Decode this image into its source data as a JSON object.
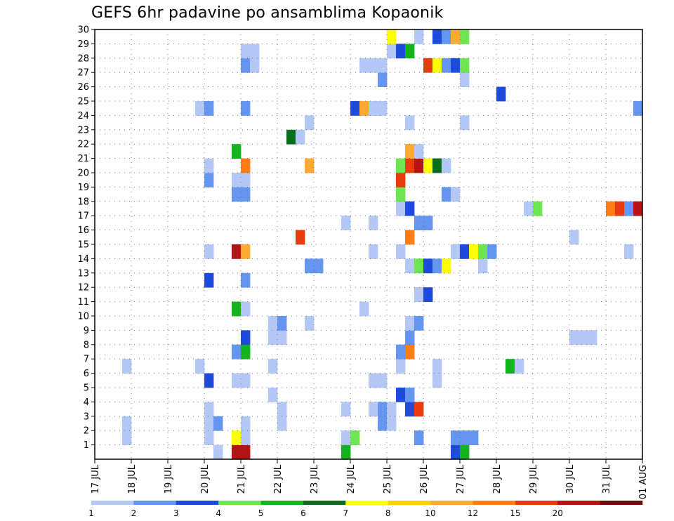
{
  "title": "GEFS 6hr padavine po ansamblima Kopaonik",
  "chart_data": {
    "type": "heatmap",
    "title": "GEFS 6hr padavine po ansamblima Kopaonik",
    "y_ticks": [
      1,
      2,
      3,
      4,
      5,
      6,
      7,
      8,
      9,
      10,
      11,
      12,
      13,
      14,
      15,
      16,
      17,
      18,
      19,
      20,
      21,
      22,
      23,
      24,
      25,
      26,
      27,
      28,
      29,
      30
    ],
    "x_ticks": [
      "17 JUL",
      "18 JUL",
      "19 JUL",
      "20 JUL",
      "21 JUL",
      "22 JUL",
      "23 JUL",
      "24 JUL",
      "25 JUL",
      "26 JUL",
      "27 JUL",
      "28 JUL",
      "29 JUL",
      "30 JUL",
      "31 JUL",
      "01 AUG"
    ],
    "x_range": [
      "17 JUL 00Z",
      "01 AUG 00Z"
    ],
    "y_range": [
      0,
      30
    ],
    "time_step_hours": 6,
    "grid": true,
    "colorbar": {
      "tick_labels": [
        "1",
        "2",
        "3",
        "4",
        "5",
        "6",
        "7",
        "8",
        "10",
        "12",
        "15",
        "20"
      ],
      "colors": [
        "#b4c8f5",
        "#6496f0",
        "#1e4bdc",
        "#6ee650",
        "#14b41e",
        "#0a6e1e",
        "#ffff00",
        "#ffd200",
        "#ffaa32",
        "#ff7d14",
        "#e63c0f",
        "#b41414",
        "#6e0a0a"
      ]
    },
    "cells": [
      {
        "m": 0,
        "t": "20 JUL 06Z",
        "v": 1
      },
      {
        "m": 0,
        "t": "20 JUL 18Z",
        "v": 20
      },
      {
        "m": 0,
        "t": "21 JUL 00Z",
        "v": 20
      },
      {
        "m": 0,
        "t": "23 JUL 18Z",
        "v": 5
      },
      {
        "m": 0,
        "t": "26 JUL 18Z",
        "v": 3
      },
      {
        "m": 0,
        "t": "27 JUL 00Z",
        "v": 5
      },
      {
        "m": 1,
        "t": "17 JUL 18Z",
        "v": 1
      },
      {
        "m": 1,
        "t": "20 JUL 00Z",
        "v": 1
      },
      {
        "m": 1,
        "t": "20 JUL 18Z",
        "v": 7
      },
      {
        "m": 1,
        "t": "21 JUL 00Z",
        "v": 1
      },
      {
        "m": 1,
        "t": "23 JUL 18Z",
        "v": 1
      },
      {
        "m": 1,
        "t": "24 JUL 00Z",
        "v": 4
      },
      {
        "m": 1,
        "t": "25 JUL 18Z",
        "v": 2
      },
      {
        "m": 1,
        "t": "26 JUL 18Z",
        "v": 2
      },
      {
        "m": 1,
        "t": "27 JUL 00Z",
        "v": 2
      },
      {
        "m": 1,
        "t": "27 JUL 06Z",
        "v": 2
      },
      {
        "m": 2,
        "t": "17 JUL 18Z",
        "v": 1
      },
      {
        "m": 2,
        "t": "20 JUL 00Z",
        "v": 1
      },
      {
        "m": 2,
        "t": "20 JUL 06Z",
        "v": 2
      },
      {
        "m": 2,
        "t": "21 JUL 00Z",
        "v": 1
      },
      {
        "m": 2,
        "t": "22 JUL 00Z",
        "v": 1
      },
      {
        "m": 2,
        "t": "24 JUL 18Z",
        "v": 2
      },
      {
        "m": 2,
        "t": "25 JUL 00Z",
        "v": 1
      },
      {
        "m": 3,
        "t": "20 JUL 00Z",
        "v": 1
      },
      {
        "m": 3,
        "t": "22 JUL 00Z",
        "v": 1
      },
      {
        "m": 3,
        "t": "23 JUL 18Z",
        "v": 1
      },
      {
        "m": 3,
        "t": "24 JUL 12Z",
        "v": 1
      },
      {
        "m": 3,
        "t": "24 JUL 18Z",
        "v": 2
      },
      {
        "m": 3,
        "t": "25 JUL 00Z",
        "v": 1
      },
      {
        "m": 3,
        "t": "25 JUL 12Z",
        "v": 3
      },
      {
        "m": 3,
        "t": "25 JUL 18Z",
        "v": 15
      },
      {
        "m": 4,
        "t": "21 JUL 18Z",
        "v": 1
      },
      {
        "m": 4,
        "t": "25 JUL 06Z",
        "v": 3
      },
      {
        "m": 4,
        "t": "25 JUL 12Z",
        "v": 2
      },
      {
        "m": 5,
        "t": "20 JUL 00Z",
        "v": 3
      },
      {
        "m": 5,
        "t": "20 JUL 18Z",
        "v": 1
      },
      {
        "m": 5,
        "t": "21 JUL 00Z",
        "v": 1
      },
      {
        "m": 5,
        "t": "24 JUL 12Z",
        "v": 1
      },
      {
        "m": 5,
        "t": "24 JUL 18Z",
        "v": 1
      },
      {
        "m": 5,
        "t": "26 JUL 06Z",
        "v": 1
      },
      {
        "m": 6,
        "t": "17 JUL 18Z",
        "v": 1
      },
      {
        "m": 6,
        "t": "19 JUL 18Z",
        "v": 1
      },
      {
        "m": 6,
        "t": "21 JUL 18Z",
        "v": 1
      },
      {
        "m": 6,
        "t": "25 JUL 06Z",
        "v": 1
      },
      {
        "m": 6,
        "t": "26 JUL 06Z",
        "v": 1
      },
      {
        "m": 6,
        "t": "28 JUL 06Z",
        "v": 5
      },
      {
        "m": 6,
        "t": "28 JUL 12Z",
        "v": 1
      },
      {
        "m": 7,
        "t": "20 JUL 18Z",
        "v": 2
      },
      {
        "m": 7,
        "t": "21 JUL 00Z",
        "v": 5
      },
      {
        "m": 7,
        "t": "25 JUL 06Z",
        "v": 2
      },
      {
        "m": 7,
        "t": "25 JUL 12Z",
        "v": 12
      },
      {
        "m": 8,
        "t": "21 JUL 00Z",
        "v": 3
      },
      {
        "m": 8,
        "t": "21 JUL 18Z",
        "v": 1
      },
      {
        "m": 8,
        "t": "22 JUL 00Z",
        "v": 1
      },
      {
        "m": 8,
        "t": "25 JUL 12Z",
        "v": 2
      },
      {
        "m": 8,
        "t": "30 JUL 00Z",
        "v": 1
      },
      {
        "m": 8,
        "t": "30 JUL 06Z",
        "v": 1
      },
      {
        "m": 8,
        "t": "30 JUL 12Z",
        "v": 1
      },
      {
        "m": 9,
        "t": "21 JUL 18Z",
        "v": 1
      },
      {
        "m": 9,
        "t": "22 JUL 00Z",
        "v": 2
      },
      {
        "m": 9,
        "t": "22 JUL 18Z",
        "v": 1
      },
      {
        "m": 9,
        "t": "25 JUL 12Z",
        "v": 1
      },
      {
        "m": 9,
        "t": "25 JUL 18Z",
        "v": 2
      },
      {
        "m": 10,
        "t": "20 JUL 18Z",
        "v": 5
      },
      {
        "m": 10,
        "t": "21 JUL 00Z",
        "v": 1
      },
      {
        "m": 10,
        "t": "24 JUL 06Z",
        "v": 1
      },
      {
        "m": 11,
        "t": "25 JUL 18Z",
        "v": 1
      },
      {
        "m": 11,
        "t": "26 JUL 00Z",
        "v": 3
      },
      {
        "m": 12,
        "t": "20 JUL 00Z",
        "v": 3
      },
      {
        "m": 12,
        "t": "21 JUL 00Z",
        "v": 2
      },
      {
        "m": 13,
        "t": "22 JUL 18Z",
        "v": 2
      },
      {
        "m": 13,
        "t": "23 JUL 00Z",
        "v": 2
      },
      {
        "m": 13,
        "t": "25 JUL 12Z",
        "v": 1
      },
      {
        "m": 13,
        "t": "25 JUL 18Z",
        "v": 4
      },
      {
        "m": 13,
        "t": "26 JUL 00Z",
        "v": 3
      },
      {
        "m": 13,
        "t": "26 JUL 06Z",
        "v": 2
      },
      {
        "m": 13,
        "t": "26 JUL 12Z",
        "v": 7
      },
      {
        "m": 13,
        "t": "27 JUL 12Z",
        "v": 1
      },
      {
        "m": 14,
        "t": "20 JUL 00Z",
        "v": 1
      },
      {
        "m": 14,
        "t": "20 JUL 18Z",
        "v": 20
      },
      {
        "m": 14,
        "t": "21 JUL 00Z",
        "v": 10
      },
      {
        "m": 14,
        "t": "24 JUL 12Z",
        "v": 1
      },
      {
        "m": 14,
        "t": "25 JUL 06Z",
        "v": 1
      },
      {
        "m": 14,
        "t": "26 JUL 18Z",
        "v": 1
      },
      {
        "m": 14,
        "t": "27 JUL 00Z",
        "v": 3
      },
      {
        "m": 14,
        "t": "27 JUL 06Z",
        "v": 7
      },
      {
        "m": 14,
        "t": "27 JUL 12Z",
        "v": 4
      },
      {
        "m": 14,
        "t": "27 JUL 18Z",
        "v": 2
      },
      {
        "m": 14,
        "t": "31 JUL 12Z",
        "v": 1
      },
      {
        "m": 15,
        "t": "22 JUL 12Z",
        "v": 15
      },
      {
        "m": 15,
        "t": "25 JUL 12Z",
        "v": 12
      },
      {
        "m": 15,
        "t": "30 JUL 00Z",
        "v": 1
      },
      {
        "m": 16,
        "t": "23 JUL 18Z",
        "v": 1
      },
      {
        "m": 16,
        "t": "24 JUL 12Z",
        "v": 1
      },
      {
        "m": 16,
        "t": "25 JUL 18Z",
        "v": 2
      },
      {
        "m": 16,
        "t": "26 JUL 00Z",
        "v": 2
      },
      {
        "m": 17,
        "t": "25 JUL 06Z",
        "v": 1
      },
      {
        "m": 17,
        "t": "25 JUL 12Z",
        "v": 3
      },
      {
        "m": 17,
        "t": "28 JUL 18Z",
        "v": 1
      },
      {
        "m": 17,
        "t": "29 JUL 00Z",
        "v": 4
      },
      {
        "m": 17,
        "t": "31 JUL 00Z",
        "v": 12
      },
      {
        "m": 17,
        "t": "31 JUL 06Z",
        "v": 15
      },
      {
        "m": 17,
        "t": "31 JUL 12Z",
        "v": 2
      },
      {
        "m": 17,
        "t": "31 JUL 18Z",
        "v": 20
      },
      {
        "m": 18,
        "t": "20 JUL 18Z",
        "v": 2
      },
      {
        "m": 18,
        "t": "21 JUL 00Z",
        "v": 2
      },
      {
        "m": 18,
        "t": "25 JUL 06Z",
        "v": 4
      },
      {
        "m": 18,
        "t": "26 JUL 12Z",
        "v": 2
      },
      {
        "m": 18,
        "t": "26 JUL 18Z",
        "v": 1
      },
      {
        "m": 19,
        "t": "20 JUL 00Z",
        "v": 2
      },
      {
        "m": 19,
        "t": "20 JUL 18Z",
        "v": 1
      },
      {
        "m": 19,
        "t": "21 JUL 00Z",
        "v": 1
      },
      {
        "m": 19,
        "t": "25 JUL 06Z",
        "v": 15
      },
      {
        "m": 20,
        "t": "20 JUL 00Z",
        "v": 1
      },
      {
        "m": 20,
        "t": "21 JUL 00Z",
        "v": 12
      },
      {
        "m": 20,
        "t": "22 JUL 18Z",
        "v": 10
      },
      {
        "m": 20,
        "t": "25 JUL 06Z",
        "v": 4
      },
      {
        "m": 20,
        "t": "25 JUL 12Z",
        "v": 15
      },
      {
        "m": 20,
        "t": "25 JUL 18Z",
        "v": 20
      },
      {
        "m": 20,
        "t": "26 JUL 00Z",
        "v": 7
      },
      {
        "m": 20,
        "t": "26 JUL 06Z",
        "v": 6
      },
      {
        "m": 20,
        "t": "26 JUL 12Z",
        "v": 1
      },
      {
        "m": 21,
        "t": "20 JUL 18Z",
        "v": 5
      },
      {
        "m": 21,
        "t": "25 JUL 12Z",
        "v": 10
      },
      {
        "m": 21,
        "t": "25 JUL 18Z",
        "v": 1
      },
      {
        "m": 22,
        "t": "22 JUL 06Z",
        "v": 6
      },
      {
        "m": 22,
        "t": "22 JUL 12Z",
        "v": 1
      },
      {
        "m": 23,
        "t": "22 JUL 18Z",
        "v": 1
      },
      {
        "m": 23,
        "t": "25 JUL 12Z",
        "v": 1
      },
      {
        "m": 23,
        "t": "27 JUL 00Z",
        "v": 1
      },
      {
        "m": 24,
        "t": "19 JUL 18Z",
        "v": 1
      },
      {
        "m": 24,
        "t": "20 JUL 00Z",
        "v": 2
      },
      {
        "m": 24,
        "t": "21 JUL 00Z",
        "v": 2
      },
      {
        "m": 24,
        "t": "24 JUL 00Z",
        "v": 3
      },
      {
        "m": 24,
        "t": "24 JUL 06Z",
        "v": 10
      },
      {
        "m": 24,
        "t": "24 JUL 12Z",
        "v": 1
      },
      {
        "m": 24,
        "t": "24 JUL 18Z",
        "v": 1
      },
      {
        "m": 24,
        "t": "31 JUL 18Z",
        "v": 2
      },
      {
        "m": 25,
        "t": "28 JUL 00Z",
        "v": 3
      },
      {
        "m": 26,
        "t": "24 JUL 18Z",
        "v": 2
      },
      {
        "m": 26,
        "t": "27 JUL 00Z",
        "v": 1
      },
      {
        "m": 27,
        "t": "21 JUL 00Z",
        "v": 2
      },
      {
        "m": 27,
        "t": "21 JUL 06Z",
        "v": 1
      },
      {
        "m": 27,
        "t": "24 JUL 06Z",
        "v": 1
      },
      {
        "m": 27,
        "t": "24 JUL 12Z",
        "v": 1
      },
      {
        "m": 27,
        "t": "24 JUL 18Z",
        "v": 1
      },
      {
        "m": 27,
        "t": "26 JUL 00Z",
        "v": 15
      },
      {
        "m": 27,
        "t": "26 JUL 06Z",
        "v": 7
      },
      {
        "m": 27,
        "t": "26 JUL 12Z",
        "v": 2
      },
      {
        "m": 27,
        "t": "26 JUL 18Z",
        "v": 3
      },
      {
        "m": 27,
        "t": "27 JUL 00Z",
        "v": 4
      },
      {
        "m": 28,
        "t": "21 JUL 00Z",
        "v": 1
      },
      {
        "m": 28,
        "t": "21 JUL 06Z",
        "v": 1
      },
      {
        "m": 28,
        "t": "25 JUL 00Z",
        "v": 1
      },
      {
        "m": 28,
        "t": "25 JUL 06Z",
        "v": 3
      },
      {
        "m": 28,
        "t": "25 JUL 12Z",
        "v": 5
      },
      {
        "m": 29,
        "t": "25 JUL 18Z",
        "v": 1
      },
      {
        "m": 29,
        "t": "25 JUL 00Z",
        "v": 7
      },
      {
        "m": 29,
        "t": "26 JUL 06Z",
        "v": 3
      },
      {
        "m": 29,
        "t": "26 JUL 12Z",
        "v": 2
      },
      {
        "m": 29,
        "t": "26 JUL 18Z",
        "v": 10
      },
      {
        "m": 29,
        "t": "27 JUL 00Z",
        "v": 4
      }
    ]
  }
}
